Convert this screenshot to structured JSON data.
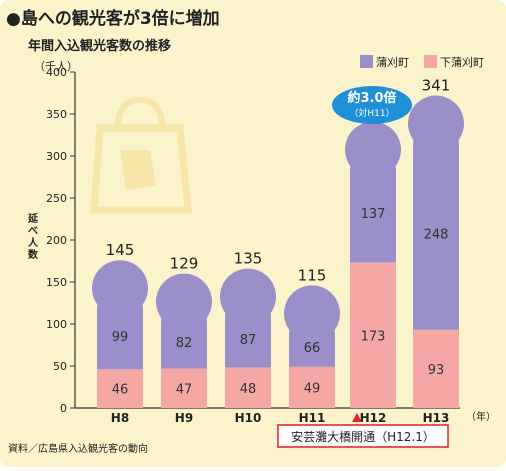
{
  "header": {
    "title": "●島への観光客が3倍に増加",
    "subtitle": "年間入込観光客数の推移"
  },
  "source": "資料／広島県入込観光客の動向",
  "annotation": {
    "bubble_line1": "約3.0倍",
    "bubble_line2": "（対H11）",
    "bridge": "安芸灘大橋開通（H12.1）"
  },
  "colors": {
    "background": "#fbf3cc",
    "top_series": "#9a8fc8",
    "bottom_series": "#f5a7a5",
    "bubble": "#1f8fd6",
    "red_accent": "#e0202a"
  },
  "chart_data": {
    "type": "bar",
    "stacked": true,
    "categories": [
      "H8",
      "H9",
      "H10",
      "H11",
      "H12",
      "H13"
    ],
    "series": [
      {
        "name": "下蒲刈町",
        "values": [
          46,
          47,
          48,
          49,
          173,
          93
        ]
      },
      {
        "name": "蒲刈町",
        "values": [
          99,
          82,
          87,
          66,
          137,
          248
        ]
      }
    ],
    "totals": [
      145,
      129,
      135,
      115,
      310,
      341
    ],
    "unit_label": "（千人）",
    "ylabel": "延べ人数",
    "xunit": "（年）",
    "ylim": [
      0,
      400
    ],
    "yticks": [
      0,
      50,
      100,
      150,
      200,
      250,
      300,
      350,
      400
    ],
    "legend_position": "top-right",
    "grid": false
  }
}
